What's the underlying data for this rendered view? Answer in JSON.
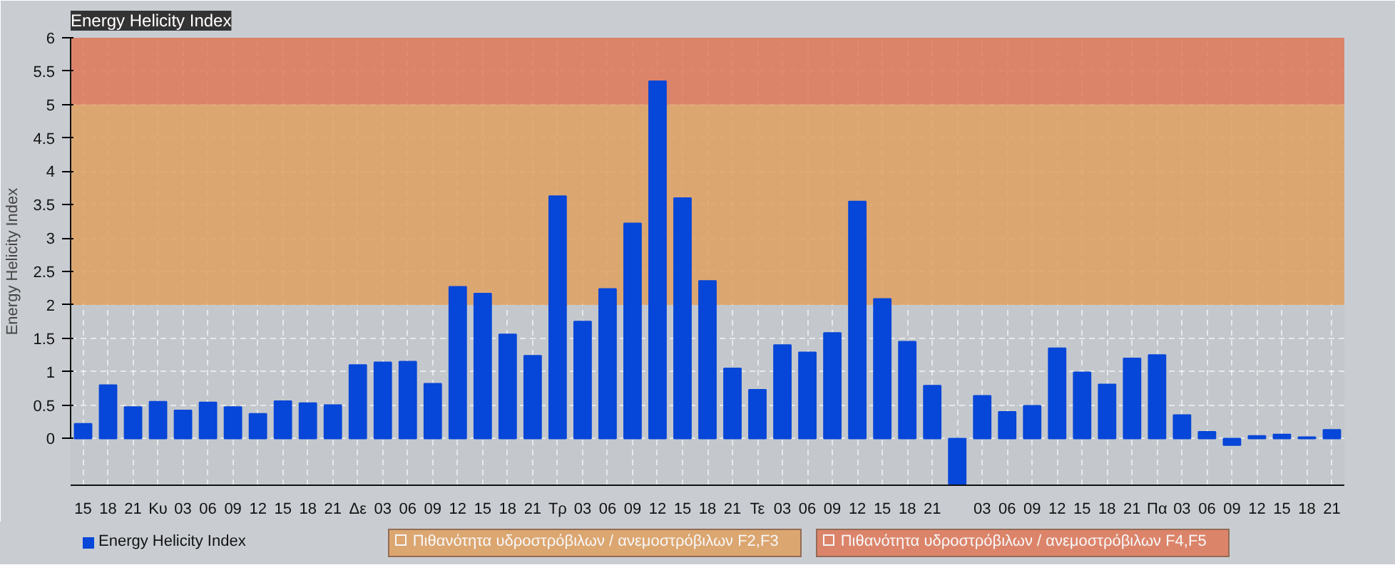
{
  "chart_data": {
    "type": "bar",
    "title": "Energy Helicity Index",
    "ylabel": "Energy Helicity Index",
    "categories": [
      "15",
      "18",
      "21",
      "Κυ",
      "03",
      "06",
      "09",
      "12",
      "15",
      "18",
      "21",
      "Δε",
      "03",
      "06",
      "09",
      "12",
      "15",
      "18",
      "21",
      "Τρ",
      "03",
      "06",
      "09",
      "12",
      "15",
      "18",
      "21",
      "Τε",
      "03",
      "06",
      "09",
      "12",
      "15",
      "18",
      "21",
      null,
      "03",
      "06",
      "09",
      "12",
      "15",
      "18",
      "21",
      "Πα",
      "03",
      "06",
      "09",
      "12",
      "15",
      "18",
      "21"
    ],
    "series": [
      {
        "name": "Energy Helicity Index",
        "color": "#0646d8",
        "values": [
          0.22,
          0.8,
          0.47,
          0.55,
          0.42,
          0.54,
          0.47,
          0.37,
          0.56,
          0.53,
          0.5,
          1.1,
          1.14,
          1.15,
          0.82,
          2.27,
          2.17,
          1.56,
          1.24,
          3.63,
          1.75,
          2.24,
          3.22,
          5.35,
          3.6,
          2.36,
          1.05,
          0.73,
          1.4,
          1.29,
          1.58,
          3.55,
          2.09,
          1.45,
          0.79,
          -0.68,
          0.64,
          0.4,
          0.49,
          1.35,
          0.99,
          0.81,
          1.2,
          1.25,
          0.35,
          0.1,
          -0.1,
          0.04,
          0.06,
          0.02,
          0.13
        ]
      }
    ],
    "ylim": [
      -0.7,
      6
    ],
    "yticks": [
      0,
      0.5,
      1,
      1.5,
      2,
      2.5,
      3,
      3.5,
      4,
      4.5,
      5,
      5.5,
      6
    ],
    "bands": [
      {
        "axis": "y",
        "from": 2,
        "to": 5,
        "label": "Πιθανότητα υδροστρόβιλων / ανεμοστρόβιλων F2,F3",
        "color": "#e0a060"
      },
      {
        "axis": "y",
        "from": 5,
        "to": 6,
        "label": "Πιθανότητα υδροστρόβιλων / ανεμοστρόβιλων F4,F5",
        "color": "#e07858"
      }
    ],
    "grid": true,
    "legend": "bottom left"
  }
}
